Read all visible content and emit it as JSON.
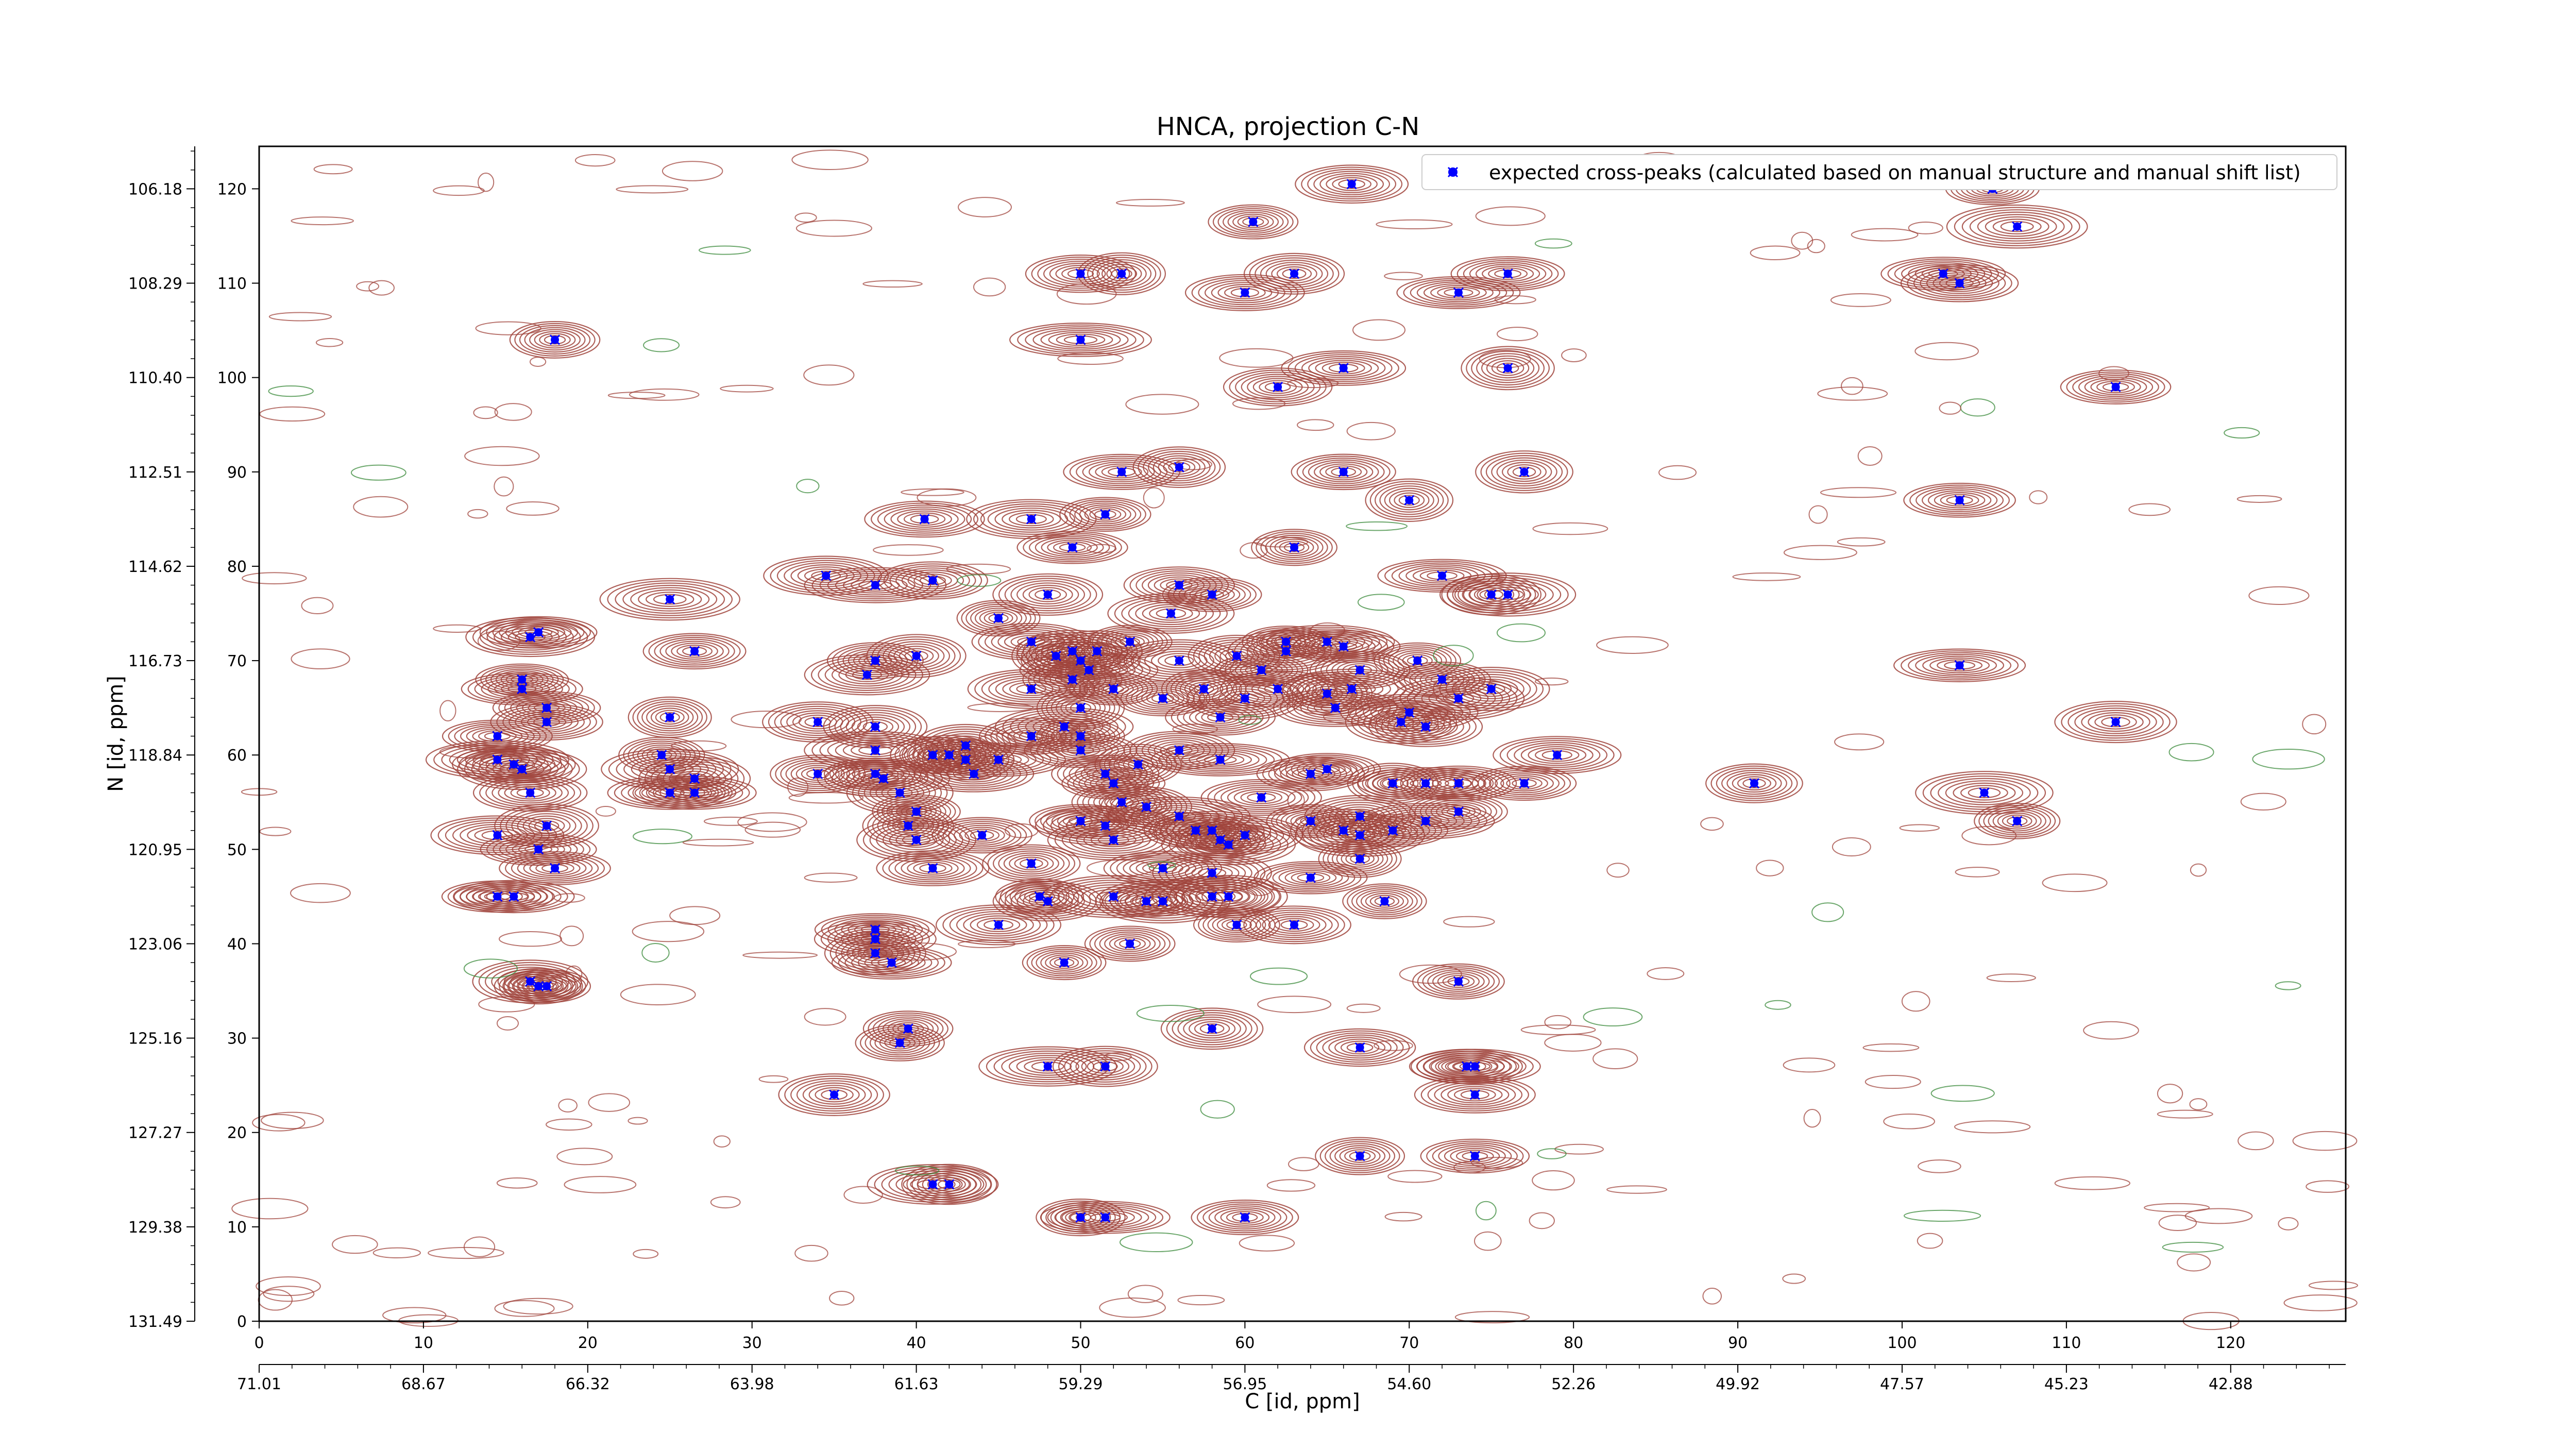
{
  "chart_data": {
    "type": "scatter",
    "title": "HNCA, projection C-N",
    "xlabel": "C [id, ppm]",
    "ylabel": "N [id, ppm]",
    "xlim": [
      0,
      127
    ],
    "ylim": [
      0,
      120
    ],
    "x_ticks": [
      "0",
      "10",
      "20",
      "30",
      "40",
      "50",
      "60",
      "70",
      "80",
      "90",
      "100",
      "110",
      "120"
    ],
    "y_ticks": [
      "0",
      "10",
      "20",
      "30",
      "40",
      "50",
      "60",
      "70",
      "80",
      "90",
      "100",
      "110",
      "120"
    ],
    "x2_ticks": [
      "71.01",
      "68.67",
      "66.32",
      "63.98",
      "61.63",
      "59.29",
      "56.95",
      "54.60",
      "52.26",
      "49.92",
      "47.57",
      "45.23",
      "42.88"
    ],
    "y2_ticks": [
      "131.49",
      "129.38",
      "127.27",
      "125.16",
      "123.06",
      "120.95",
      "118.84",
      "116.73",
      "114.62",
      "112.51",
      "110.40",
      "108.29",
      "106.18"
    ],
    "legend": {
      "position": "top-right",
      "label": "expected cross-peaks (calculated based on manual structure and manual shift list)"
    },
    "colors": {
      "points": "#0000ff",
      "contour_pos": "#a0443c",
      "contour_neg": "#3a8a3a"
    },
    "grid": false,
    "series": [
      {
        "name": "expected cross-peaks (calculated based on manual structure and manual shift list)",
        "points": [
          [
            66.5,
            120.5
          ],
          [
            60.5,
            116.5
          ],
          [
            50,
            111
          ],
          [
            52.5,
            111
          ],
          [
            60,
            109
          ],
          [
            63,
            111
          ],
          [
            73,
            109
          ],
          [
            76,
            111
          ],
          [
            102.5,
            111
          ],
          [
            103.5,
            110
          ],
          [
            105.5,
            120
          ],
          [
            107,
            116
          ],
          [
            18,
            104
          ],
          [
            50,
            104
          ],
          [
            62,
            99
          ],
          [
            66,
            101
          ],
          [
            76,
            101
          ],
          [
            113,
            99
          ],
          [
            52.5,
            90
          ],
          [
            56,
            90.5
          ],
          [
            66,
            90
          ],
          [
            70,
            87
          ],
          [
            77,
            90
          ],
          [
            103.5,
            87
          ],
          [
            40.5,
            85
          ],
          [
            47,
            85
          ],
          [
            51.5,
            85.5
          ],
          [
            49.5,
            82
          ],
          [
            63,
            82
          ],
          [
            34.5,
            79
          ],
          [
            37.5,
            78
          ],
          [
            41,
            78.5
          ],
          [
            48,
            77
          ],
          [
            56,
            78
          ],
          [
            58,
            77
          ],
          [
            72,
            79
          ],
          [
            75,
            77
          ],
          [
            76,
            77
          ],
          [
            25,
            76.5
          ],
          [
            16.5,
            72.5
          ],
          [
            17,
            73
          ],
          [
            26.5,
            71
          ],
          [
            37.5,
            70
          ],
          [
            37,
            68.5
          ],
          [
            40,
            70.5
          ],
          [
            45,
            74.5
          ],
          [
            47,
            72
          ],
          [
            48.5,
            70.5
          ],
          [
            49.5,
            71
          ],
          [
            50,
            70
          ],
          [
            51,
            71
          ],
          [
            50.5,
            69
          ],
          [
            53,
            72
          ],
          [
            55.5,
            75
          ],
          [
            56,
            70
          ],
          [
            59.5,
            70.5
          ],
          [
            61,
            69
          ],
          [
            62.5,
            72
          ],
          [
            62.5,
            71
          ],
          [
            65,
            72
          ],
          [
            66,
            71.5
          ],
          [
            67,
            69
          ],
          [
            70.5,
            70
          ],
          [
            72,
            68
          ],
          [
            103.5,
            69.5
          ],
          [
            16,
            68
          ],
          [
            16,
            67
          ],
          [
            17.5,
            65
          ],
          [
            17.5,
            63.5
          ],
          [
            25,
            64
          ],
          [
            34,
            63.5
          ],
          [
            37.5,
            63
          ],
          [
            47,
            67
          ],
          [
            49.5,
            68
          ],
          [
            50,
            65
          ],
          [
            52,
            67
          ],
          [
            55,
            66
          ],
          [
            57.5,
            67
          ],
          [
            58.5,
            64
          ],
          [
            60,
            66
          ],
          [
            62,
            67
          ],
          [
            65,
            66.5
          ],
          [
            65.5,
            65
          ],
          [
            66.5,
            67
          ],
          [
            69.5,
            63.5
          ],
          [
            70,
            64.5
          ],
          [
            71,
            63
          ],
          [
            73,
            66
          ],
          [
            75,
            67
          ],
          [
            113,
            63.5
          ],
          [
            14.5,
            62
          ],
          [
            14.5,
            59.5
          ],
          [
            15.5,
            59
          ],
          [
            16,
            58.5
          ],
          [
            16.5,
            56
          ],
          [
            25,
            58.5
          ],
          [
            24.5,
            60
          ],
          [
            26.5,
            57.5
          ],
          [
            26.5,
            56
          ],
          [
            25,
            56
          ],
          [
            34,
            58
          ],
          [
            37.5,
            58
          ],
          [
            37.5,
            60.5
          ],
          [
            41,
            60
          ],
          [
            42,
            60
          ],
          [
            43,
            59.5
          ],
          [
            43,
            61
          ],
          [
            43.5,
            58
          ],
          [
            45,
            59.5
          ],
          [
            47,
            62
          ],
          [
            49,
            63
          ],
          [
            50,
            62
          ],
          [
            50,
            60.5
          ],
          [
            51.5,
            58
          ],
          [
            52,
            57
          ],
          [
            53.5,
            59
          ],
          [
            56,
            60.5
          ],
          [
            58.5,
            59.5
          ],
          [
            64,
            58
          ],
          [
            65,
            58.5
          ],
          [
            69,
            57
          ],
          [
            71,
            57
          ],
          [
            73,
            57
          ],
          [
            77,
            57
          ],
          [
            79,
            60
          ],
          [
            91,
            57
          ],
          [
            105,
            56
          ],
          [
            39,
            56
          ],
          [
            38,
            57.5
          ],
          [
            40,
            54
          ],
          [
            39.5,
            52.5
          ],
          [
            40,
            51
          ],
          [
            44,
            51.5
          ],
          [
            50,
            53
          ],
          [
            51.5,
            52.5
          ],
          [
            52,
            51
          ],
          [
            52.5,
            55
          ],
          [
            54,
            54.5
          ],
          [
            56,
            53.5
          ],
          [
            57,
            52
          ],
          [
            58,
            52
          ],
          [
            58.5,
            51
          ],
          [
            59,
            50.5
          ],
          [
            60,
            51.5
          ],
          [
            61,
            55.5
          ],
          [
            64,
            53
          ],
          [
            66,
            52
          ],
          [
            67,
            51.5
          ],
          [
            67,
            53.5
          ],
          [
            69,
            52
          ],
          [
            71,
            53
          ],
          [
            73,
            54
          ],
          [
            107,
            53
          ],
          [
            17.5,
            52.5
          ],
          [
            14.5,
            51.5
          ],
          [
            17,
            50
          ],
          [
            18,
            48
          ],
          [
            41,
            48
          ],
          [
            47,
            48.5
          ],
          [
            55,
            48
          ],
          [
            58,
            47.5
          ],
          [
            64,
            47
          ],
          [
            67,
            49
          ],
          [
            14.5,
            45
          ],
          [
            15.5,
            45
          ],
          [
            47.5,
            45
          ],
          [
            48,
            44.5
          ],
          [
            52,
            45
          ],
          [
            54,
            44.5
          ],
          [
            55,
            44.5
          ],
          [
            58,
            45
          ],
          [
            59,
            45
          ],
          [
            68.5,
            44.5
          ],
          [
            37.5,
            41.5
          ],
          [
            37.5,
            40.5
          ],
          [
            37.5,
            39
          ],
          [
            38.5,
            38
          ],
          [
            45,
            42
          ],
          [
            49,
            38
          ],
          [
            53,
            40
          ],
          [
            59.5,
            42
          ],
          [
            63,
            42
          ],
          [
            16.5,
            36
          ],
          [
            17,
            35.5
          ],
          [
            17.5,
            35.5
          ],
          [
            73,
            36
          ],
          [
            39.5,
            31
          ],
          [
            39,
            29.5
          ],
          [
            58,
            31
          ],
          [
            67,
            29
          ],
          [
            48,
            27
          ],
          [
            51.5,
            27
          ],
          [
            73.5,
            27
          ],
          [
            74,
            27
          ],
          [
            74,
            24
          ],
          [
            35,
            24
          ],
          [
            67,
            17.5
          ],
          [
            74,
            17.5
          ],
          [
            41,
            14.5
          ],
          [
            42,
            14.5
          ],
          [
            50,
            11
          ],
          [
            51.5,
            11
          ],
          [
            60,
            11
          ]
        ]
      }
    ],
    "contour_levels": [
      {
        "level": "positive",
        "region": "cross-peak envelopes"
      },
      {
        "level": "negative",
        "region": "minor artifacts"
      }
    ]
  }
}
